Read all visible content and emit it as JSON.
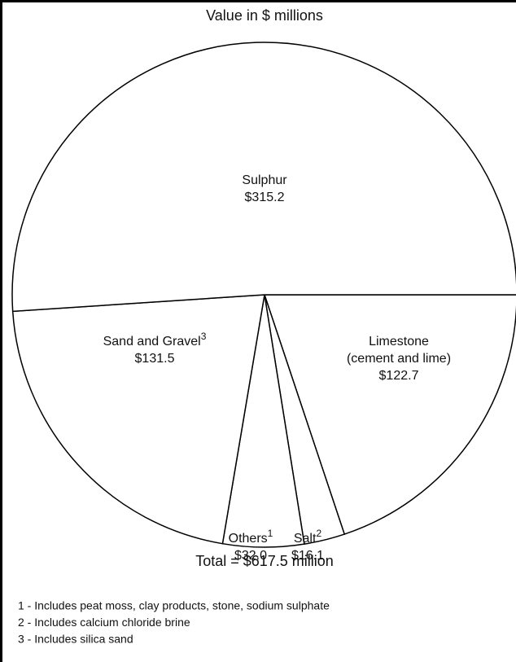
{
  "chart_data": {
    "type": "pie",
    "title": "Value in $ millions",
    "categories": [
      "Limestone",
      "Salt",
      "Others",
      "Sand and Gravel",
      "Sulphur"
    ],
    "descriptions": [
      "(cement and lime)",
      null,
      null,
      null,
      null
    ],
    "footnote_refs": [
      null,
      "2",
      "1",
      "3",
      null
    ],
    "values": [
      122.7,
      16.1,
      32.0,
      131.5,
      315.2
    ],
    "value_labels": [
      "$122.7",
      "$16.1",
      "$32.0",
      "$131.5",
      "$315.2"
    ],
    "color": "#ffffff",
    "total_label": "Total = $617.5 million",
    "footnotes": [
      "1 - Includes peat moss, clay products, stone, sodium sulphate",
      "2 - Includes calcium chloride brine",
      "3 - Includes silica sand"
    ]
  }
}
